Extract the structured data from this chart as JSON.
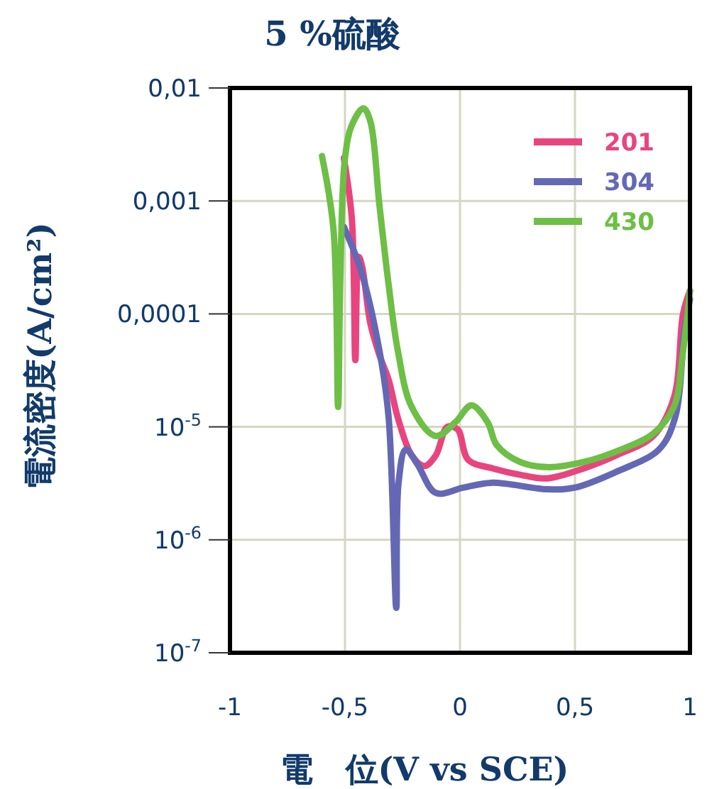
{
  "chart_data": {
    "type": "line",
    "title": "5 %硫酸",
    "xlabel": "電　位(V vs SCE)",
    "ylabel": "電流密度(A/cm²)",
    "log": "y",
    "grid": true,
    "legend": "top right",
    "line_style": "solid",
    "marker": "none",
    "xlim": [
      -1,
      1
    ],
    "xticks": [
      {
        "value": -1,
        "label": "-1"
      },
      {
        "value": -0.5,
        "label": "-0,5"
      },
      0,
      {
        "value": 0.5,
        "label": "0,5"
      },
      1
    ],
    "ylim": [
      1e-07,
      0.01
    ],
    "yticks": [
      {
        "value": 0.01,
        "label": "0,01"
      },
      {
        "value": 0.001,
        "label": "0,001"
      },
      {
        "value": 0.0001,
        "label": "0,0001"
      },
      {
        "value": 1e-05,
        "label": "10$^{-5}$"
      },
      {
        "value": 1e-06,
        "label": "10$^{-6}$"
      },
      {
        "value": 1e-07,
        "label": "10$^{-7}$"
      }
    ],
    "series": [
      {
        "name": "201",
        "color": "#e8457f",
        "x": [
          -0.505,
          -0.47,
          -0.455,
          -0.44,
          -0.425,
          -0.39,
          -0.35,
          -0.31,
          -0.27,
          -0.21,
          -0.155,
          -0.105,
          -0.055,
          -0.01,
          0.036,
          0.14,
          0.28,
          0.38,
          0.54,
          0.68,
          0.84,
          0.93,
          0.97,
          1.0
        ],
        "values": [
          0.0024,
          0.00069,
          3.9e-05,
          0.00032,
          0.00026,
          8.3e-05,
          4.3e-05,
          2.6e-05,
          1.2e-05,
          5.6e-06,
          4.5e-06,
          5.6e-06,
          1e-05,
          9.5e-06,
          5.1e-06,
          4.3e-06,
          3.7e-06,
          3.5e-06,
          4.3e-06,
          5.6e-06,
          8.3e-06,
          1.8e-05,
          0.0001,
          0.00016
        ]
      },
      {
        "name": "304",
        "color": "#6468b4",
        "x": [
          -0.505,
          -0.43,
          -0.35,
          -0.31,
          -0.277,
          -0.267,
          -0.236,
          -0.186,
          -0.105,
          0.016,
          0.137,
          0.38,
          0.5,
          0.68,
          0.865,
          0.935,
          0.976,
          1.0
        ],
        "values": [
          0.00059,
          0.00024,
          4.7e-05,
          1.2e-05,
          2.5e-07,
          3.2e-06,
          6.3e-06,
          4.7e-06,
          2.6e-06,
          2.9e-06,
          3.2e-06,
          2.8e-06,
          2.9e-06,
          4e-06,
          6.3e-06,
          1.2e-05,
          6.9e-05,
          0.000135
        ]
      },
      {
        "name": "430",
        "color": "#6dbf45",
        "x": [
          -0.6,
          -0.55,
          -0.53,
          -0.52,
          -0.5,
          -0.47,
          -0.42,
          -0.39,
          -0.35,
          -0.31,
          -0.27,
          -0.21,
          -0.105,
          -0.02,
          0.05,
          0.12,
          0.16,
          0.26,
          0.38,
          0.54,
          0.7,
          0.84,
          0.93,
          0.97,
          1.0
        ],
        "values": [
          0.0025,
          0.00056,
          1.5e-05,
          0.00022,
          0.0024,
          0.0047,
          0.0066,
          0.0051,
          0.00091,
          0.00018,
          4.7e-05,
          1.5e-05,
          8.3e-06,
          1.1e-05,
          1.55e-05,
          1.1e-05,
          6.9e-06,
          4.9e-06,
          4.4e-06,
          4.9e-06,
          6.3e-06,
          8.7e-06,
          1.5e-05,
          4.7e-05,
          0.00016
        ]
      }
    ]
  }
}
